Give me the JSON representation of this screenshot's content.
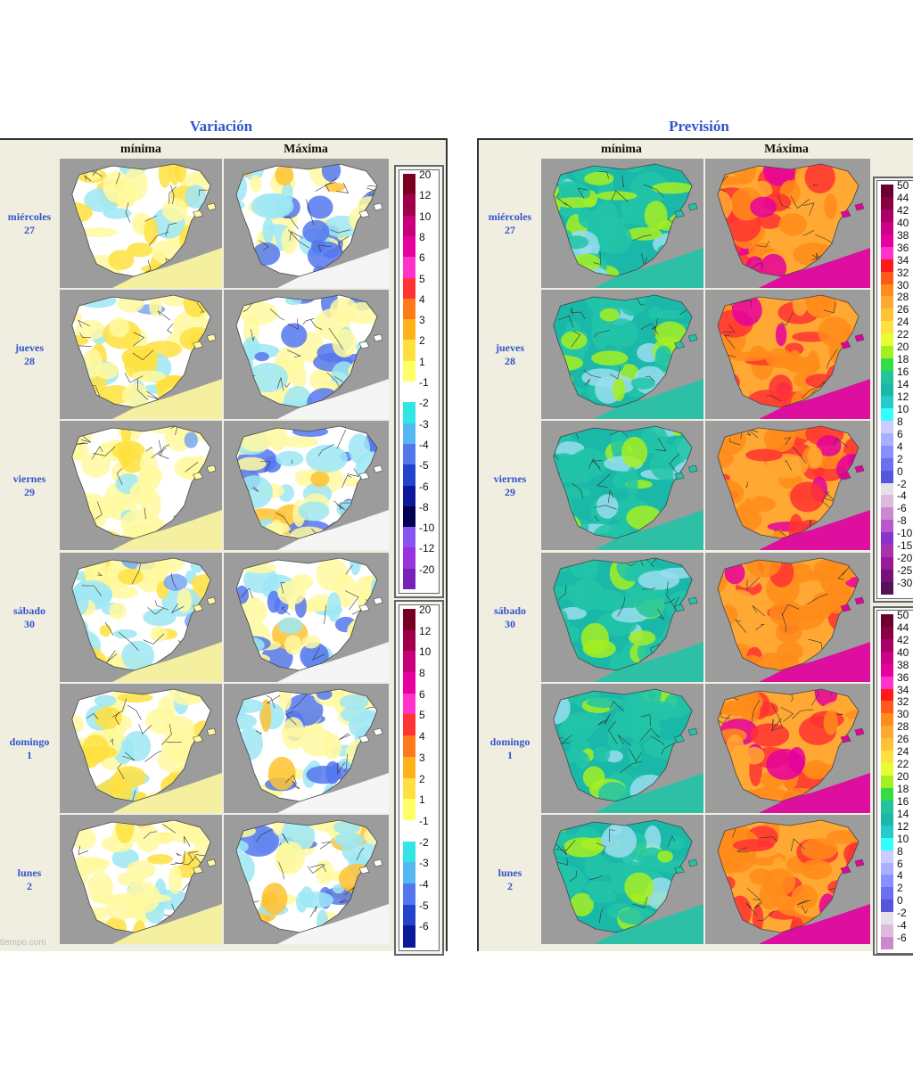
{
  "sections": {
    "variacion": {
      "title": "Variación",
      "col_min": "mínima",
      "col_max": "Máxima"
    },
    "prevision": {
      "title": "Previsión",
      "col_min": "mínima",
      "col_max": "Máxima"
    }
  },
  "days": [
    {
      "name": "miércoles",
      "num": "27"
    },
    {
      "name": "jueves",
      "num": "28"
    },
    {
      "name": "viernes",
      "num": "29"
    },
    {
      "name": "sábado",
      "num": "30"
    },
    {
      "name": "domingo",
      "num": "1"
    },
    {
      "name": "lunes",
      "num": "2"
    }
  ],
  "legend_variacion": {
    "ticks": [
      "20",
      "12",
      "10",
      "8",
      "6",
      "5",
      "4",
      "3",
      "2",
      "1",
      "-1",
      "-2",
      "-3",
      "-4",
      "-5",
      "-6",
      "-8",
      "-10",
      "-12",
      "-20"
    ],
    "colors": [
      "#7a0022",
      "#a0004a",
      "#c8007a",
      "#e6009e",
      "#ff33cc",
      "#ff3333",
      "#ff7a1a",
      "#ffb31a",
      "#ffe040",
      "#ffff66",
      "#ffffff",
      "#33e6e6",
      "#55b8f0",
      "#5577ee",
      "#2244cc",
      "#0a1a99",
      "#000055",
      "#8855ee",
      "#9933dd",
      "#7722bb",
      "#551188"
    ]
  },
  "legend_prevision": {
    "ticks": [
      "50",
      "44",
      "42",
      "40",
      "38",
      "36",
      "34",
      "32",
      "30",
      "28",
      "26",
      "24",
      "22",
      "20",
      "18",
      "16",
      "14",
      "12",
      "10",
      "8",
      "6",
      "4",
      "2",
      "0",
      "-2",
      "-4",
      "-6",
      "-8",
      "-10",
      "-15",
      "-20",
      "-25",
      "-30"
    ],
    "colors": [
      "#6a0030",
      "#880040",
      "#aa0066",
      "#cc0088",
      "#e6009e",
      "#ff33cc",
      "#ff1a1a",
      "#ff5a1a",
      "#ff8c1a",
      "#ffa833",
      "#ffc233",
      "#ffe040",
      "#e6ff33",
      "#a6ee22",
      "#33dd44",
      "#22c49a",
      "#1ab8a8",
      "#22cccc",
      "#33ffff",
      "#ccccff",
      "#aab0ff",
      "#8890ff",
      "#6a70f0",
      "#5555dd",
      "#e6e0e8",
      "#ddbbdd",
      "#cc88cc",
      "#bb55cc",
      "#8833cc",
      "#aa33aa",
      "#991a99",
      "#771177",
      "#551155"
    ]
  },
  "watermark": "tiempo.com"
}
